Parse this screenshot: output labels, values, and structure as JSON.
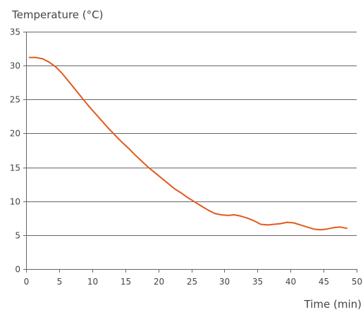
{
  "chart_data": {
    "type": "line",
    "title": "",
    "ylabel": "Temperature (°C)",
    "xlabel": "Time (min)",
    "xlim": [
      0,
      50
    ],
    "ylim": [
      0,
      35
    ],
    "xticks": [
      0,
      5,
      10,
      15,
      20,
      25,
      30,
      35,
      40,
      45,
      50
    ],
    "yticks": [
      0,
      5,
      10,
      15,
      20,
      25,
      30,
      35
    ],
    "grid": {
      "horizontal": true,
      "vertical": false
    },
    "legend": "none",
    "series": [
      {
        "color": "#e05a1e",
        "x": [
          0.5,
          1.5,
          2.5,
          3.5,
          4.5,
          5.5,
          6.5,
          7.5,
          8.5,
          9.5,
          10.5,
          11.5,
          12.5,
          13.5,
          14.5,
          15.5,
          16.5,
          17.5,
          18.5,
          19.5,
          20.5,
          21.5,
          22.5,
          23.5,
          24.5,
          25.5,
          26.5,
          27.5,
          28.5,
          29.5,
          30.5,
          31.5,
          32.5,
          33.5,
          34.5,
          35.5,
          36.5,
          37.5,
          38.5,
          39.5,
          40.5,
          41.5,
          42.5,
          43.5,
          44.5,
          45.5,
          46.5,
          47.5,
          48.5
        ],
        "y": [
          31.2,
          31.2,
          31.0,
          30.5,
          29.8,
          28.8,
          27.6,
          26.4,
          25.2,
          24.0,
          22.9,
          21.8,
          20.7,
          19.7,
          18.7,
          17.8,
          16.8,
          15.9,
          15.0,
          14.2,
          13.4,
          12.6,
          11.8,
          11.2,
          10.5,
          9.9,
          9.3,
          8.7,
          8.2,
          8.0,
          7.9,
          8.0,
          7.8,
          7.5,
          7.1,
          6.6,
          6.5,
          6.6,
          6.7,
          6.9,
          6.8,
          6.5,
          6.2,
          5.9,
          5.8,
          5.9,
          6.1,
          6.2,
          6.0
        ]
      }
    ]
  }
}
